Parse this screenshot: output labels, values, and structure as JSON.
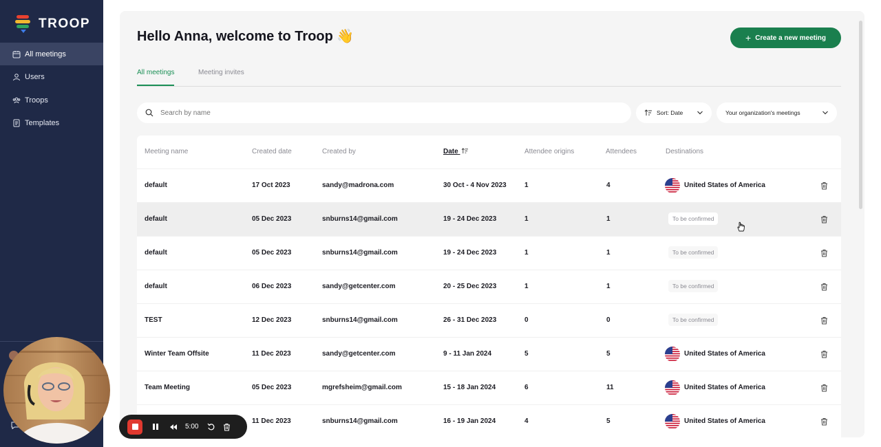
{
  "app": {
    "name": "TROOP"
  },
  "sidebar": {
    "items": [
      {
        "label": "All meetings",
        "icon": "calendar-icon",
        "active": true
      },
      {
        "label": "Users",
        "icon": "user-icon",
        "active": false
      },
      {
        "label": "Troops",
        "icon": "group-icon",
        "active": false
      },
      {
        "label": "Templates",
        "icon": "document-icon",
        "active": false
      }
    ]
  },
  "header": {
    "welcome": "Hello Anna, welcome to Troop 👋",
    "create_button": "Create a new meeting"
  },
  "tabs": [
    {
      "label": "All meetings",
      "active": true
    },
    {
      "label": "Meeting invites",
      "active": false
    }
  ],
  "filters": {
    "search_placeholder": "Search by name",
    "sort_label": "Sort: Date",
    "scope_label": "Your organization's meetings"
  },
  "table": {
    "columns": [
      "Meeting name",
      "Created date",
      "Created by",
      "Date",
      "Attendee origins",
      "Attendees",
      "Destinations"
    ],
    "rows": [
      {
        "name": "default",
        "created": "17 Oct 2023",
        "by": "sandy@madrona.com",
        "date": "30 Oct - 4 Nov 2023",
        "origins": "1",
        "attendees": "4",
        "destination": "United States of America",
        "confirmed": true,
        "hover": false
      },
      {
        "name": "default",
        "created": "05 Dec 2023",
        "by": "snburns14@gmail.com",
        "date": "19 - 24 Dec 2023",
        "origins": "1",
        "attendees": "1",
        "destination": "To be confirmed",
        "confirmed": false,
        "hover": true
      },
      {
        "name": "default",
        "created": "05 Dec 2023",
        "by": "snburns14@gmail.com",
        "date": "19 - 24 Dec 2023",
        "origins": "1",
        "attendees": "1",
        "destination": "To be confirmed",
        "confirmed": false,
        "hover": false
      },
      {
        "name": "default",
        "created": "06 Dec 2023",
        "by": "sandy@getcenter.com",
        "date": "20 - 25 Dec 2023",
        "origins": "1",
        "attendees": "1",
        "destination": "To be confirmed",
        "confirmed": false,
        "hover": false
      },
      {
        "name": "TEST",
        "created": "12 Dec 2023",
        "by": "snburns14@gmail.com",
        "date": "26 - 31 Dec 2023",
        "origins": "0",
        "attendees": "0",
        "destination": "To be confirmed",
        "confirmed": false,
        "hover": false
      },
      {
        "name": "Winter Team Offsite",
        "created": "11 Dec 2023",
        "by": "sandy@getcenter.com",
        "date": "9 - 11 Jan 2024",
        "origins": "5",
        "attendees": "5",
        "destination": "United States of America",
        "confirmed": true,
        "hover": false
      },
      {
        "name": "Team Meeting",
        "created": "05 Dec 2023",
        "by": "mgrefsheim@gmail.com",
        "date": "15 - 18 Jan 2024",
        "origins": "6",
        "attendees": "11",
        "destination": "United States of America",
        "confirmed": true,
        "hover": false
      },
      {
        "name": "",
        "created": "11 Dec 2023",
        "by": "snburns14@gmail.com",
        "date": "16 - 19 Jan 2024",
        "origins": "4",
        "attendees": "5",
        "destination": "United States of America",
        "confirmed": true,
        "hover": false
      }
    ]
  },
  "recorder": {
    "time": "5:00"
  },
  "colors": {
    "sidebar": "#1f2947",
    "accent": "#1a7f4e",
    "record": "#e0392f"
  }
}
